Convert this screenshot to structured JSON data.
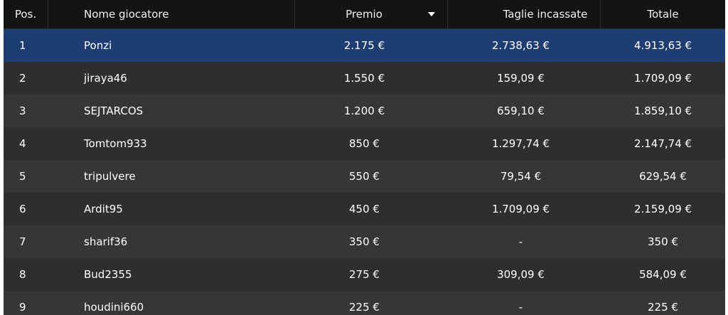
{
  "table": {
    "headers": [
      "Pos.",
      "Nome giocatore",
      "Premio",
      "Taglie incassate",
      "Totale"
    ],
    "rows": [
      [
        "1",
        "Ponzi",
        "2.175 €",
        "2.738,63 €",
        "4.913,63 €"
      ],
      [
        "2",
        "jiraya46",
        "1.550 €",
        "159,09 €",
        "1.709,09 €"
      ],
      [
        "3",
        "SEJTARCOS",
        "1.200 €",
        "659,10 €",
        "1.859,10 €"
      ],
      [
        "4",
        "Tomtom933",
        "850 €",
        "1.297,74 €",
        "2.147,74 €"
      ],
      [
        "5",
        "tripulvere",
        "550 €",
        "79,54 €",
        "629,54 €"
      ],
      [
        "6",
        "Ardit95",
        "450 €",
        "1.709,09 €",
        "2.159,09 €"
      ],
      [
        "7",
        "sharif36",
        "350 €",
        "-",
        "350 €"
      ],
      [
        "8",
        "Bud2355",
        "275 €",
        "309,09 €",
        "584,09 €"
      ],
      [
        "9",
        "houdini660",
        "225 €",
        "-",
        "225 €"
      ]
    ]
  }
}
